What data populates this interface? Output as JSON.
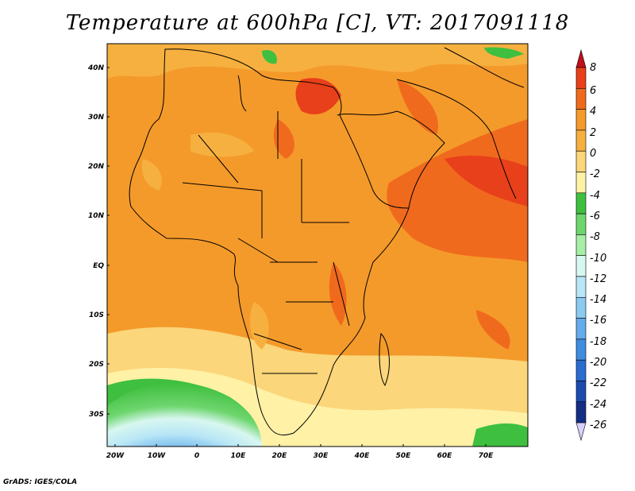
{
  "title": "Temperature at 600hPa [C], VT: 2017091118",
  "credit": "GrADS: IGES/COLA",
  "axes": {
    "lat_labels": [
      "40N",
      "30N",
      "20N",
      "10N",
      "EQ",
      "10S",
      "20S",
      "30S"
    ],
    "lon_labels": [
      "20W",
      "10W",
      "0",
      "10E",
      "20E",
      "30E",
      "40E",
      "50E",
      "60E",
      "70E"
    ]
  },
  "colorbar": {
    "labels": [
      "8",
      "6",
      "4",
      "2",
      "0",
      "-2",
      "-4",
      "-6",
      "-8",
      "-10",
      "-12",
      "-14",
      "-16",
      "-18",
      "-20",
      "-22",
      "-24",
      "-26"
    ],
    "colors": [
      "#c0101a",
      "#e8401a",
      "#f06a1e",
      "#f49a2a",
      "#f6b040",
      "#fbd67a",
      "#fff1a6",
      "#3fbf3f",
      "#6ed66e",
      "#a7eea7",
      "#d8f7f0",
      "#b8e6f6",
      "#8ccaf0",
      "#64acec",
      "#3f8ce0",
      "#2a6cd0",
      "#1c4bb0",
      "#142e86",
      "#d8d0ff"
    ]
  }
}
